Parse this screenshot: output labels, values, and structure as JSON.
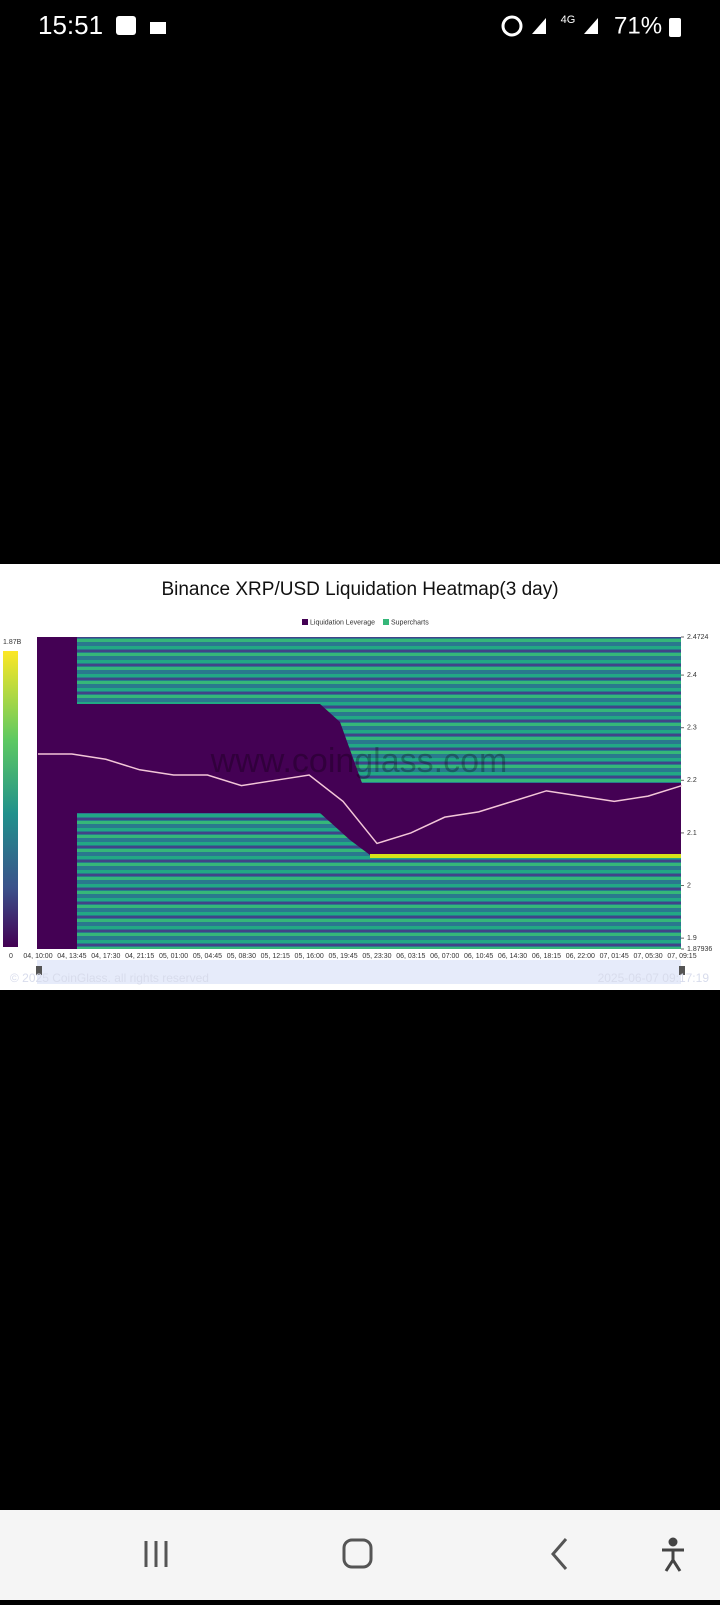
{
  "status_bar": {
    "time": "15:51",
    "network": "4G",
    "battery": "71%"
  },
  "chart_data": {
    "type": "line",
    "title": "Binance XRP/USD Liquidation Heatmap(3 day)",
    "legend": [
      "Liquidation Leverage",
      "Supercharts"
    ],
    "legend_colors": [
      "#440154",
      "#35b779"
    ],
    "watermark": "www.coinglass.com",
    "copyright": "© 2025 CoinGlass. all rights reserved",
    "timestamp": "2025-06-07 09:17:19",
    "colorbar_labels": [
      "1.87B",
      "0"
    ],
    "categories": [
      "04, 10:00",
      "04, 13:45",
      "04, 17:30",
      "04, 21:15",
      "05, 01:00",
      "05, 04:45",
      "05, 08:30",
      "05, 12:15",
      "05, 16:00",
      "05, 19:45",
      "05, 23:30",
      "06, 03:15",
      "06, 07:00",
      "06, 10:45",
      "06, 14:30",
      "06, 18:15",
      "06, 22:00",
      "07, 01:45",
      "07, 05:30",
      "07, 09:15"
    ],
    "series": [
      {
        "color": "#f3c6d8",
        "values": [
          2.25,
          2.25,
          2.24,
          2.22,
          2.21,
          2.21,
          2.19,
          2.2,
          2.21,
          2.16,
          2.08,
          2.1,
          2.13,
          2.14,
          2.16,
          2.18,
          2.17,
          2.16,
          2.17,
          2.19
        ]
      }
    ],
    "ylim": [
      1.87936,
      2.4724
    ],
    "yticks": [
      1.87936,
      1.9,
      2,
      2.1,
      2.2,
      2.3,
      2.4,
      2.4724
    ]
  }
}
